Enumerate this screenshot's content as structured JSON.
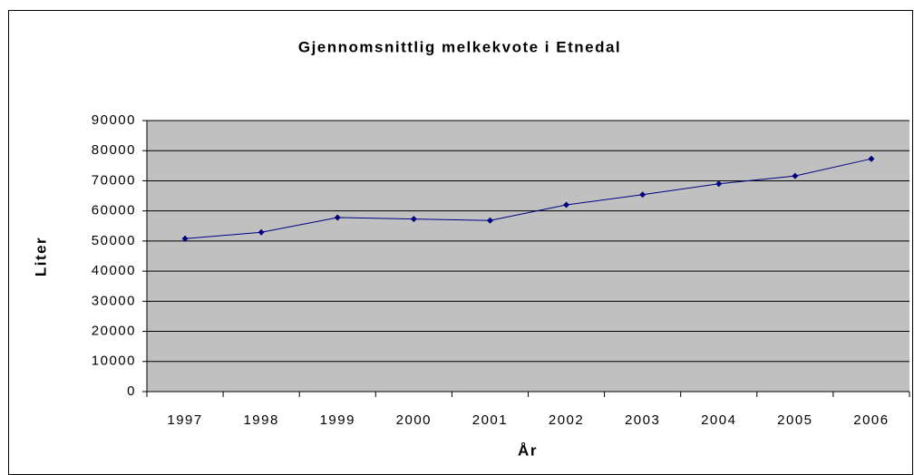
{
  "chart_data": {
    "type": "line",
    "title": "Gjennomsnittlig melkekvote i Etnedal",
    "x_label": "År",
    "y_label": "Liter",
    "categories": [
      "1997",
      "1998",
      "1999",
      "2000",
      "2001",
      "2002",
      "2003",
      "2004",
      "2005",
      "2006"
    ],
    "series": [
      {
        "name": "Liter",
        "color": "#000080",
        "values": [
          50800,
          52900,
          57800,
          57300,
          56800,
          62000,
          65400,
          69000,
          71600,
          77300
        ]
      }
    ],
    "ylim": [
      0,
      90000
    ],
    "yticks": [
      0,
      10000,
      20000,
      30000,
      40000,
      50000,
      60000,
      70000,
      80000,
      90000
    ],
    "grid": true,
    "plot_background": "#c0c0c0"
  }
}
